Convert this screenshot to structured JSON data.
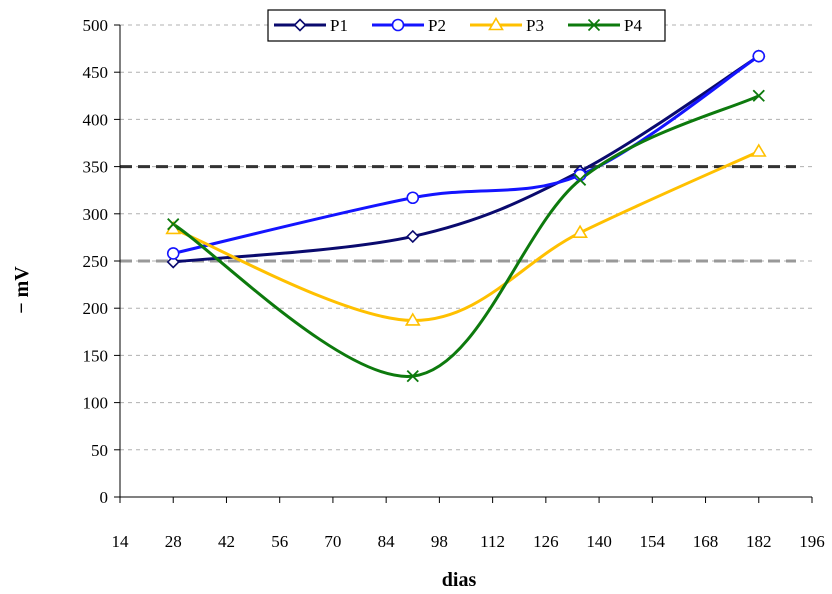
{
  "chart_data": {
    "type": "line",
    "xlabel": "dias",
    "ylabel": "− mV",
    "xlim": [
      14,
      196
    ],
    "ylim": [
      0,
      500
    ],
    "x_ticks": [
      "14",
      "28",
      "42",
      "56",
      "70",
      "84",
      "98",
      "112",
      "126",
      "140",
      "154",
      "168",
      "182",
      "196"
    ],
    "y_ticks": [
      "0",
      "50",
      "100",
      "150",
      "200",
      "250",
      "300",
      "350",
      "400",
      "450",
      "500"
    ],
    "grid": "horizontal dashed",
    "legend_position": "top",
    "series": [
      {
        "name": "P1",
        "color": "#0a0a6e",
        "marker": "diamond",
        "x": [
          28,
          91,
          135,
          182
        ],
        "y": [
          249,
          276,
          345,
          467
        ]
      },
      {
        "name": "P2",
        "color": "#1414ff",
        "marker": "circle",
        "x": [
          28,
          91,
          135,
          182
        ],
        "y": [
          258,
          317,
          341,
          467
        ]
      },
      {
        "name": "P3",
        "color": "#ffc000",
        "marker": "triangle",
        "x": [
          28,
          91,
          135,
          182
        ],
        "y": [
          284,
          187,
          280,
          366
        ]
      },
      {
        "name": "P4",
        "color": "#0d7a0d",
        "marker": "x",
        "x": [
          28,
          91,
          135,
          182
        ],
        "y": [
          289,
          128,
          336,
          425
        ]
      }
    ],
    "reference_lines": [
      {
        "y": 350,
        "color": "#333333"
      },
      {
        "y": 250,
        "color": "#999999"
      }
    ]
  }
}
